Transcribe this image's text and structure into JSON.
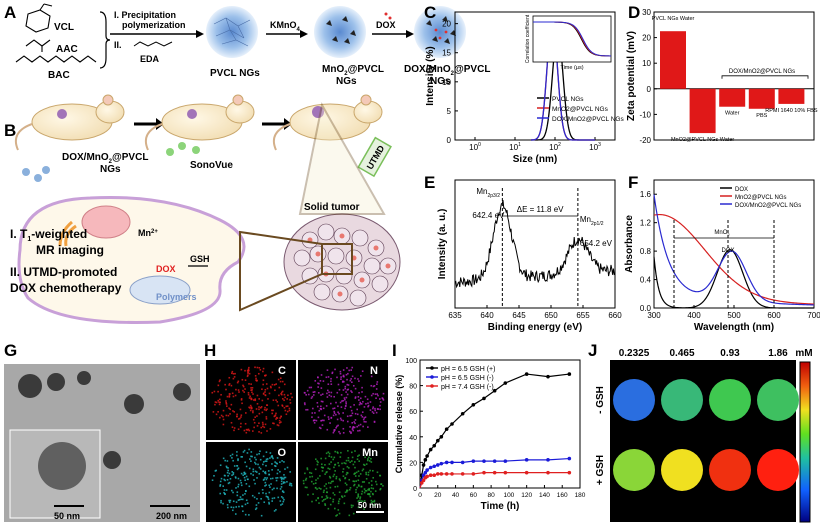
{
  "panel_letters": {
    "a": "A",
    "b": "B",
    "c": "C",
    "d": "D",
    "e": "E",
    "f": "F",
    "g": "G",
    "h": "H",
    "i": "I",
    "j": "J"
  },
  "panel_a": {
    "monomers": [
      "VCL",
      "AAC",
      "BAC"
    ],
    "step1": "I. Precipitation",
    "step1b": "polymerization",
    "step2": "II.",
    "eda": "EDA",
    "kmno4": "KMnO",
    "kmno4_sub": "4",
    "dox": "DOX",
    "product1": "PVCL NGs",
    "product2a": "MnO",
    "product2b": "@PVCL",
    "product2c": "NGs",
    "product3a": "DOX/MnO",
    "product3b": "@PVCL",
    "product3c": "NGs"
  },
  "panel_b": {
    "inject_a": "DOX/MnO",
    "inject_b": "@PVCL",
    "inject_c": "NGs",
    "sonovue": "SonoVue",
    "utmd": "UTMD",
    "solid_tumor": "Solid tumor",
    "mr_a": "I. T",
    "mr_b": "-weighted",
    "mr_c": "MR imaging",
    "chemo_a": "II. UTMD-promoted",
    "chemo_b": "DOX chemotherapy",
    "mn2": "Mn",
    "gsh": "GSH",
    "dox": "DOX",
    "polymers": "Polymers"
  },
  "chart_data": [
    {
      "id": "C",
      "type": "line",
      "xlabel": "Size (nm)",
      "ylabel": "Intensity (%)",
      "xscale": "log",
      "xticks": [
        "10",
        "10",
        "10",
        "10"
      ],
      "xtick_exp": [
        "0",
        "1",
        "2",
        "3"
      ],
      "yticks": [
        "0",
        "5",
        "10",
        "15",
        "20"
      ],
      "ylim": [
        0,
        22
      ],
      "series": [
        {
          "name": "PVCL NGs",
          "color": "#000000",
          "peak": 370,
          "height": 18.7
        },
        {
          "name": "MnO2@PVCL NGs",
          "color": "#d62020",
          "peak": 270,
          "height": 20.5
        },
        {
          "name": "DOX/MnO2@PVCL NGs",
          "color": "#2a2ad0",
          "peak": 270,
          "height": 20.6
        }
      ],
      "inset": {
        "ylabel": "Correlation coefficient",
        "xlabel": "Time (µs)"
      }
    },
    {
      "id": "D",
      "type": "bar",
      "ylabel": "Zeta potential (mV)",
      "ylim": [
        -20,
        30
      ],
      "yticks": [
        "-20",
        "-10",
        "0",
        "10",
        "20",
        "30"
      ],
      "categories": [
        "PVCL NGs Water",
        "MnO2@PVCL NGs Water",
        "Water",
        "PBS",
        "RPMI 1640 10% FBS"
      ],
      "values": [
        22.5,
        -17.3,
        -7.0,
        -7.8,
        -5.9
      ],
      "group_label": "DOX/MnO2@PVCL NGs"
    },
    {
      "id": "E",
      "type": "line",
      "xlabel": "Binding energy (eV)",
      "ylabel": "Intensity (a. u.)",
      "xticks": [
        "635",
        "640",
        "645",
        "650",
        "655",
        "660"
      ],
      "annotations": {
        "left": "Mn",
        "left_sub": "2p3/2",
        "left_val": "642.4 eV",
        "right": "Mn",
        "right_sub": "2p1/2",
        "right_val": "654.2 eV",
        "delta": "ΔE = 11.8 eV"
      }
    },
    {
      "id": "F",
      "type": "line",
      "xlabel": "Wavelength (nm)",
      "ylabel": "Absorbance",
      "xticks": [
        "300",
        "400",
        "500",
        "600",
        "700"
      ],
      "yticks": [
        "0.0",
        "0.4",
        "0.8",
        "1.2",
        "1.6"
      ],
      "ylim": [
        0,
        1.8
      ],
      "series": [
        {
          "name": "DOX",
          "color": "#000000"
        },
        {
          "name": "MnO2@PVCL NGs",
          "color": "#d62020"
        },
        {
          "name": "DOX/MnO2@PVCL NGs",
          "color": "#2a2ad0"
        }
      ],
      "labels": {
        "mno2": "MnO",
        "mno2_sub": "2",
        "dox": "DOX"
      }
    },
    {
      "id": "I",
      "type": "line",
      "xlabel": "Time (h)",
      "ylabel": "Cumulative release (%)",
      "xticks": [
        "0",
        "20",
        "40",
        "60",
        "80",
        "100",
        "120",
        "140",
        "160",
        "180"
      ],
      "yticks": [
        "0",
        "20",
        "40",
        "60",
        "80",
        "100"
      ],
      "ylim": [
        0,
        100
      ],
      "x": [
        0,
        2,
        4,
        6,
        8,
        12,
        16,
        20,
        24,
        30,
        36,
        48,
        60,
        72,
        84,
        96,
        120,
        144,
        168
      ],
      "series": [
        {
          "name": "pH = 6.5 GSH (+)",
          "color": "#000000",
          "values": [
            0,
            10,
            18,
            22,
            25,
            30,
            33,
            37,
            40,
            46,
            50,
            58,
            65,
            70,
            76,
            82,
            89,
            87,
            89
          ]
        },
        {
          "name": "pH = 6.5 GSH (-)",
          "color": "#1a1ad8",
          "values": [
            0,
            6,
            10,
            12,
            14,
            16,
            17,
            18,
            19,
            20,
            20,
            20,
            21,
            21,
            21,
            21,
            22,
            22,
            23
          ]
        },
        {
          "name": "pH = 7.4 GSH (-)",
          "color": "#e02020",
          "values": [
            0,
            4,
            6,
            8,
            9,
            10,
            10,
            11,
            11,
            11,
            11,
            11,
            11,
            12,
            12,
            12,
            12,
            12,
            12
          ]
        }
      ]
    }
  ],
  "panel_g": {
    "scale1": "50 nm",
    "scale2": "200 nm"
  },
  "panel_h": {
    "labels": [
      "C",
      "N",
      "O",
      "Mn"
    ],
    "colors": [
      "#d61818",
      "#b020b8",
      "#20b0b8",
      "#20a030"
    ],
    "scale": "50 nm"
  },
  "panel_j": {
    "concentrations": [
      "0.2325",
      "0.465",
      "0.93",
      "1.86"
    ],
    "unit": "mM",
    "row_labels": [
      "- GSH",
      "+ GSH"
    ],
    "row1_colors": [
      "#2a6ee0",
      "#38b878",
      "#3fc850",
      "#3ec060"
    ],
    "row2_colors": [
      "#8ad638",
      "#f0e020",
      "#f03010",
      "#ff2010"
    ]
  }
}
